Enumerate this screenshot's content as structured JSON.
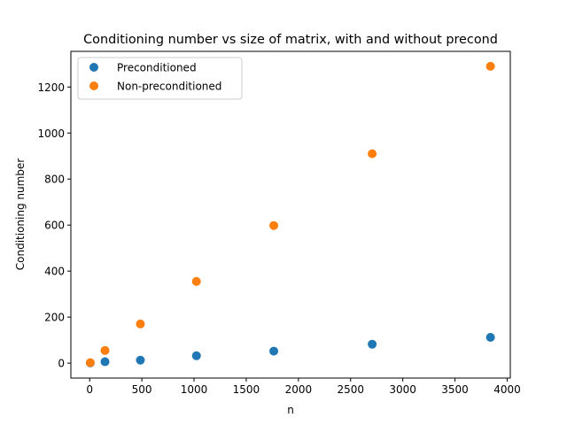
{
  "chart_data": {
    "type": "scatter",
    "title": "Conditioning number vs size of matrix, with and without precond",
    "xlabel": "n",
    "ylabel": "Conditioning number",
    "xlim": [
      -180,
      4030
    ],
    "ylim": [
      -65,
      1355
    ],
    "xticks": [
      0,
      500,
      1000,
      1500,
      2000,
      2500,
      3000,
      3500,
      4000
    ],
    "yticks": [
      0,
      200,
      400,
      600,
      800,
      1000,
      1200
    ],
    "grid": false,
    "legend_position": "top-left",
    "series": [
      {
        "name": "Preconditioned",
        "color": "#1f77b4",
        "x": [
          6,
          147,
          486,
          1023,
          1764,
          2707,
          3840
        ],
        "y": [
          1,
          6,
          13,
          32,
          52,
          82,
          112
        ]
      },
      {
        "name": "Non-preconditioned",
        "color": "#ff7f0e",
        "x": [
          6,
          147,
          486,
          1023,
          1764,
          2707,
          3840
        ],
        "y": [
          2,
          55,
          170,
          355,
          598,
          910,
          1290
        ]
      }
    ]
  }
}
